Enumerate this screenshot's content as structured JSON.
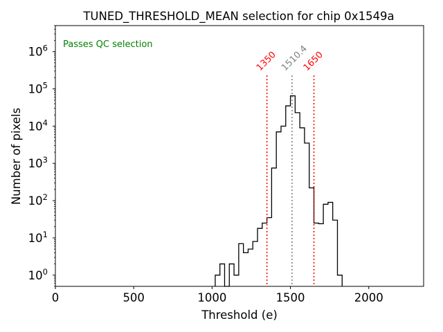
{
  "chart_data": {
    "type": "histogram",
    "title": "TUNED_THRESHOLD_MEAN selection for chip 0x1549a",
    "xlabel": "Threshold (e)",
    "ylabel": "Number of pixels",
    "yscale": "log",
    "xlim": [
      0,
      2350
    ],
    "ylim": [
      0.5,
      5000000
    ],
    "x_ticks": [
      0,
      500,
      1000,
      1500,
      2000
    ],
    "x_tick_labels": [
      "0",
      "500",
      "1000",
      "1500",
      "2000"
    ],
    "y_tick_labels": [
      {
        "exp": 0,
        "base": "10",
        "power": "0"
      },
      {
        "exp": 1,
        "base": "10",
        "power": "1"
      },
      {
        "exp": 2,
        "base": "10",
        "power": "2"
      },
      {
        "exp": 3,
        "base": "10",
        "power": "3"
      },
      {
        "exp": 4,
        "base": "10",
        "power": "4"
      },
      {
        "exp": 5,
        "base": "10",
        "power": "5"
      },
      {
        "exp": 6,
        "base": "10",
        "power": "6"
      }
    ],
    "bin_edges": [
      1020,
      1050,
      1080,
      1110,
      1140,
      1170,
      1200,
      1230,
      1260,
      1290,
      1320,
      1350,
      1380,
      1410,
      1440,
      1470,
      1500,
      1530,
      1560,
      1590,
      1620,
      1650,
      1680,
      1710,
      1740,
      1770,
      1800,
      1830
    ],
    "counts": [
      1,
      2,
      0,
      2,
      1,
      7,
      4,
      5,
      8,
      18,
      25,
      35,
      750,
      7000,
      10000,
      35000,
      65000,
      23000,
      9000,
      3500,
      220,
      25,
      24,
      80,
      90,
      30,
      1
    ],
    "cut_lines": [
      {
        "value": 1350,
        "label": "1350",
        "color": "#ff0000",
        "kind": "lower-cut"
      },
      {
        "value": 1510.4,
        "label": "1510.4",
        "color": "#808080",
        "kind": "mean"
      },
      {
        "value": 1650,
        "label": "1650",
        "color": "#ff0000",
        "kind": "upper-cut"
      }
    ],
    "annotation": {
      "text": "Passes QC selection",
      "color": "#008000",
      "position": "top-left"
    },
    "histogram_color": "#000000"
  }
}
